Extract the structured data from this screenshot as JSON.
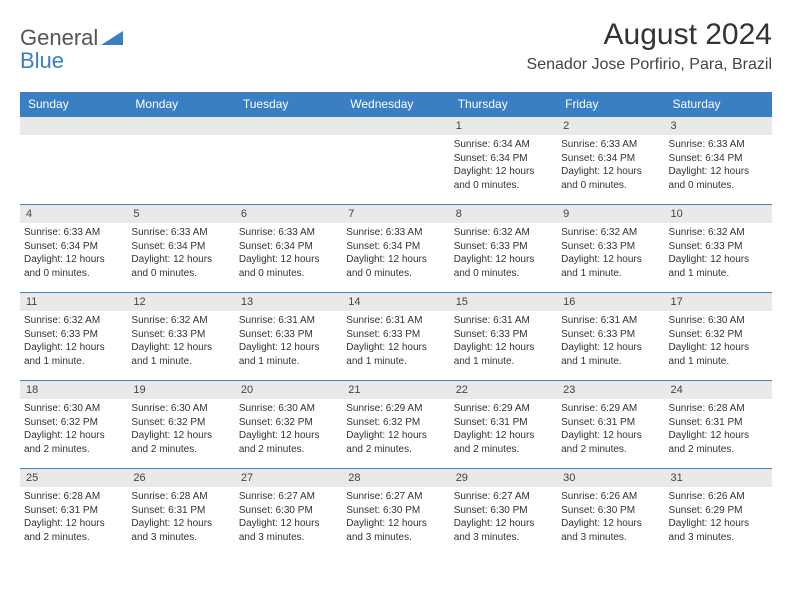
{
  "logo": {
    "word1": "General",
    "word2": "Blue"
  },
  "header": {
    "title": "August 2024",
    "subtitle": "Senador Jose Porfirio, Para, Brazil"
  },
  "colors": {
    "brandBlue": "#3a7fc4",
    "headerRowGray": "#e9e9e9",
    "text": "#333333"
  },
  "calendar": {
    "weekdays": [
      "Sunday",
      "Monday",
      "Tuesday",
      "Wednesday",
      "Thursday",
      "Friday",
      "Saturday"
    ],
    "startWeekday": 4,
    "daysInMonth": 31,
    "days": [
      {
        "n": 1,
        "sunrise": "6:34 AM",
        "sunset": "6:34 PM",
        "daylight": "12 hours and 0 minutes."
      },
      {
        "n": 2,
        "sunrise": "6:33 AM",
        "sunset": "6:34 PM",
        "daylight": "12 hours and 0 minutes."
      },
      {
        "n": 3,
        "sunrise": "6:33 AM",
        "sunset": "6:34 PM",
        "daylight": "12 hours and 0 minutes."
      },
      {
        "n": 4,
        "sunrise": "6:33 AM",
        "sunset": "6:34 PM",
        "daylight": "12 hours and 0 minutes."
      },
      {
        "n": 5,
        "sunrise": "6:33 AM",
        "sunset": "6:34 PM",
        "daylight": "12 hours and 0 minutes."
      },
      {
        "n": 6,
        "sunrise": "6:33 AM",
        "sunset": "6:34 PM",
        "daylight": "12 hours and 0 minutes."
      },
      {
        "n": 7,
        "sunrise": "6:33 AM",
        "sunset": "6:34 PM",
        "daylight": "12 hours and 0 minutes."
      },
      {
        "n": 8,
        "sunrise": "6:32 AM",
        "sunset": "6:33 PM",
        "daylight": "12 hours and 0 minutes."
      },
      {
        "n": 9,
        "sunrise": "6:32 AM",
        "sunset": "6:33 PM",
        "daylight": "12 hours and 1 minute."
      },
      {
        "n": 10,
        "sunrise": "6:32 AM",
        "sunset": "6:33 PM",
        "daylight": "12 hours and 1 minute."
      },
      {
        "n": 11,
        "sunrise": "6:32 AM",
        "sunset": "6:33 PM",
        "daylight": "12 hours and 1 minute."
      },
      {
        "n": 12,
        "sunrise": "6:32 AM",
        "sunset": "6:33 PM",
        "daylight": "12 hours and 1 minute."
      },
      {
        "n": 13,
        "sunrise": "6:31 AM",
        "sunset": "6:33 PM",
        "daylight": "12 hours and 1 minute."
      },
      {
        "n": 14,
        "sunrise": "6:31 AM",
        "sunset": "6:33 PM",
        "daylight": "12 hours and 1 minute."
      },
      {
        "n": 15,
        "sunrise": "6:31 AM",
        "sunset": "6:33 PM",
        "daylight": "12 hours and 1 minute."
      },
      {
        "n": 16,
        "sunrise": "6:31 AM",
        "sunset": "6:33 PM",
        "daylight": "12 hours and 1 minute."
      },
      {
        "n": 17,
        "sunrise": "6:30 AM",
        "sunset": "6:32 PM",
        "daylight": "12 hours and 1 minute."
      },
      {
        "n": 18,
        "sunrise": "6:30 AM",
        "sunset": "6:32 PM",
        "daylight": "12 hours and 2 minutes."
      },
      {
        "n": 19,
        "sunrise": "6:30 AM",
        "sunset": "6:32 PM",
        "daylight": "12 hours and 2 minutes."
      },
      {
        "n": 20,
        "sunrise": "6:30 AM",
        "sunset": "6:32 PM",
        "daylight": "12 hours and 2 minutes."
      },
      {
        "n": 21,
        "sunrise": "6:29 AM",
        "sunset": "6:32 PM",
        "daylight": "12 hours and 2 minutes."
      },
      {
        "n": 22,
        "sunrise": "6:29 AM",
        "sunset": "6:31 PM",
        "daylight": "12 hours and 2 minutes."
      },
      {
        "n": 23,
        "sunrise": "6:29 AM",
        "sunset": "6:31 PM",
        "daylight": "12 hours and 2 minutes."
      },
      {
        "n": 24,
        "sunrise": "6:28 AM",
        "sunset": "6:31 PM",
        "daylight": "12 hours and 2 minutes."
      },
      {
        "n": 25,
        "sunrise": "6:28 AM",
        "sunset": "6:31 PM",
        "daylight": "12 hours and 2 minutes."
      },
      {
        "n": 26,
        "sunrise": "6:28 AM",
        "sunset": "6:31 PM",
        "daylight": "12 hours and 3 minutes."
      },
      {
        "n": 27,
        "sunrise": "6:27 AM",
        "sunset": "6:30 PM",
        "daylight": "12 hours and 3 minutes."
      },
      {
        "n": 28,
        "sunrise": "6:27 AM",
        "sunset": "6:30 PM",
        "daylight": "12 hours and 3 minutes."
      },
      {
        "n": 29,
        "sunrise": "6:27 AM",
        "sunset": "6:30 PM",
        "daylight": "12 hours and 3 minutes."
      },
      {
        "n": 30,
        "sunrise": "6:26 AM",
        "sunset": "6:30 PM",
        "daylight": "12 hours and 3 minutes."
      },
      {
        "n": 31,
        "sunrise": "6:26 AM",
        "sunset": "6:29 PM",
        "daylight": "12 hours and 3 minutes."
      }
    ],
    "labels": {
      "sunrise": "Sunrise:",
      "sunset": "Sunset:",
      "daylight": "Daylight:"
    }
  }
}
